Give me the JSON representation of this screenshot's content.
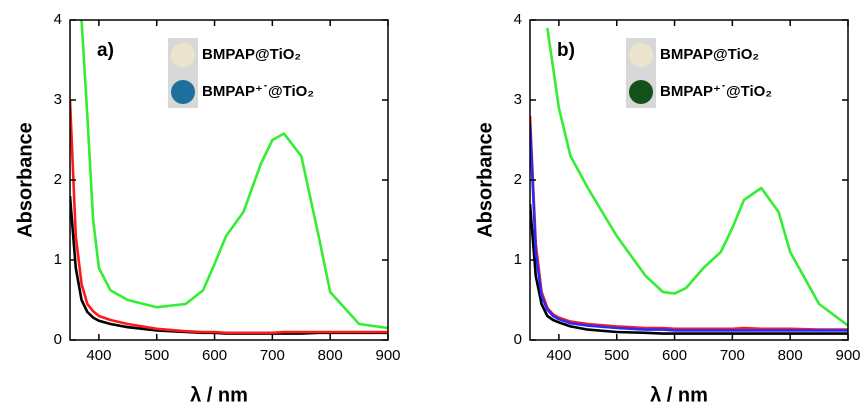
{
  "chart_data": [
    {
      "type": "line",
      "panel_label": "a)",
      "ylabel": "Absorbance",
      "xlabel": "λ / nm",
      "legend_labels": [
        "BMPAP@TiO₂",
        "BMPAP⁺˙@TiO₂"
      ],
      "swatch_colors": [
        "#ece4cc",
        "#1f6f9e"
      ],
      "x": [
        350,
        360,
        370,
        380,
        390,
        400,
        420,
        450,
        500,
        550,
        580,
        600,
        620,
        650,
        680,
        700,
        720,
        750,
        780,
        800,
        850,
        900
      ],
      "series": [
        {
          "color": "#000000",
          "values": [
            1.8,
            0.9,
            0.5,
            0.35,
            0.28,
            0.24,
            0.2,
            0.16,
            0.12,
            0.1,
            0.09,
            0.09,
            0.08,
            0.08,
            0.08,
            0.08,
            0.08,
            0.08,
            0.09,
            0.09,
            0.09,
            0.09
          ]
        },
        {
          "color": "#ff1a1a",
          "values": [
            3.0,
            1.3,
            0.7,
            0.45,
            0.36,
            0.3,
            0.25,
            0.2,
            0.14,
            0.11,
            0.1,
            0.1,
            0.09,
            0.09,
            0.09,
            0.09,
            0.1,
            0.1,
            0.1,
            0.1,
            0.1,
            0.1
          ]
        },
        {
          "color": "#33ee33",
          "values": [
            null,
            null,
            4.0,
            2.8,
            1.5,
            0.9,
            0.62,
            0.5,
            0.41,
            0.45,
            0.62,
            0.95,
            1.3,
            1.6,
            2.2,
            2.5,
            2.58,
            2.3,
            1.3,
            0.6,
            0.2,
            0.15
          ]
        }
      ],
      "xlim": [
        350,
        900
      ],
      "ylim": [
        0,
        4
      ],
      "xticks": [
        400,
        500,
        600,
        700,
        800,
        900
      ],
      "yticks": [
        0,
        1,
        2,
        3,
        4
      ]
    },
    {
      "type": "line",
      "panel_label": "b)",
      "ylabel": "Absorbance",
      "xlabel": "λ / nm",
      "legend_labels": [
        "BMPAP@TiO₂",
        "BMPAP⁺˙@TiO₂"
      ],
      "swatch_colors": [
        "#ece4cc",
        "#14501a"
      ],
      "x": [
        350,
        360,
        370,
        380,
        390,
        400,
        420,
        450,
        500,
        550,
        580,
        600,
        620,
        650,
        680,
        700,
        720,
        750,
        780,
        800,
        850,
        900
      ],
      "series": [
        {
          "color": "#000000",
          "values": [
            1.7,
            0.8,
            0.45,
            0.3,
            0.25,
            0.22,
            0.17,
            0.13,
            0.1,
            0.09,
            0.08,
            0.08,
            0.08,
            0.08,
            0.08,
            0.08,
            0.08,
            0.08,
            0.08,
            0.08,
            0.08,
            0.08
          ]
        },
        {
          "color": "#ff1a1a",
          "values": [
            2.8,
            1.2,
            0.6,
            0.4,
            0.32,
            0.28,
            0.23,
            0.2,
            0.17,
            0.15,
            0.15,
            0.14,
            0.14,
            0.14,
            0.14,
            0.14,
            0.15,
            0.14,
            0.14,
            0.14,
            0.13,
            0.13
          ]
        },
        {
          "color": "#2a2aff",
          "values": [
            2.7,
            1.1,
            0.55,
            0.38,
            0.3,
            0.26,
            0.21,
            0.18,
            0.15,
            0.13,
            0.13,
            0.12,
            0.12,
            0.12,
            0.12,
            0.12,
            0.12,
            0.12,
            0.12,
            0.12,
            0.12,
            0.12
          ]
        },
        {
          "color": "#33ee33",
          "values": [
            null,
            null,
            null,
            3.9,
            3.4,
            2.9,
            2.3,
            1.9,
            1.3,
            0.8,
            0.6,
            0.58,
            0.65,
            0.9,
            1.1,
            1.4,
            1.75,
            1.9,
            1.6,
            1.1,
            0.45,
            0.18
          ]
        }
      ],
      "xlim": [
        350,
        900
      ],
      "ylim": [
        0,
        4
      ],
      "xticks": [
        400,
        500,
        600,
        700,
        800,
        900
      ],
      "yticks": [
        0,
        1,
        2,
        3,
        4
      ]
    }
  ]
}
